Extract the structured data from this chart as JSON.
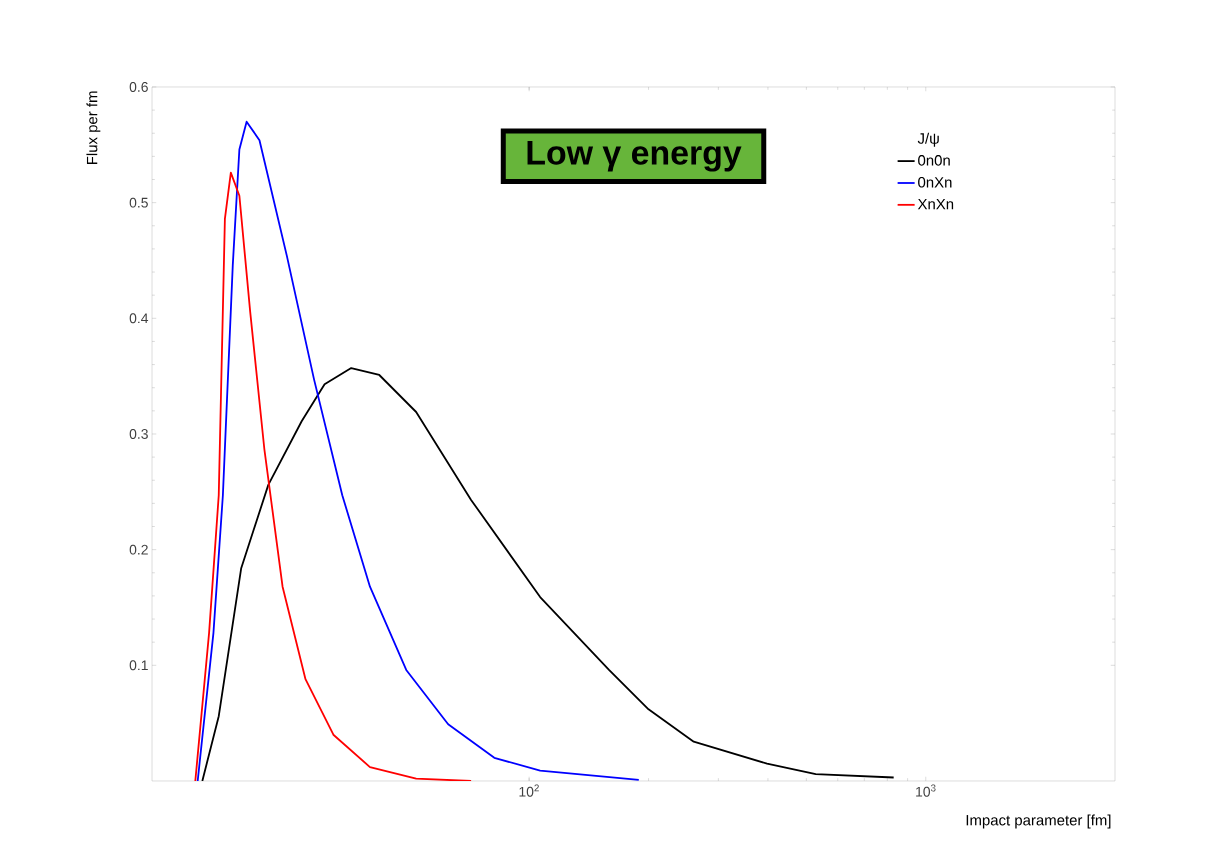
{
  "chart_data": {
    "type": "line",
    "xlabel": "Impact parameter [fm]",
    "ylabel": "Flux per fm",
    "legend_title": "J/ψ",
    "annotations": [
      "Low γ energy"
    ],
    "log": "x",
    "xlim": [
      11.2,
      3000
    ],
    "ylim": [
      0,
      0.6
    ],
    "xticks": [
      {
        "value": 100,
        "label": "10$^{2}$"
      },
      {
        "value": 1000,
        "label": "10$^{3}$"
      }
    ],
    "yticks": [
      0.1,
      0.2,
      0.3,
      0.4,
      0.5,
      0.6
    ],
    "grid": false,
    "legend": "top right",
    "marker": "none",
    "line_style": "solid",
    "series": [
      {
        "name": "0n0n",
        "color": "#000000",
        "x": [
          15.0,
          16.5,
          18.8,
          22.0,
          26.7,
          30.5,
          35.6,
          41.9,
          51.9,
          71.4,
          106.6,
          159,
          200,
          260,
          398,
          528,
          830
        ],
        "values": [
          0,
          0.056,
          0.184,
          0.256,
          0.311,
          0.343,
          0.357,
          0.351,
          0.319,
          0.243,
          0.159,
          0.096,
          0.062,
          0.034,
          0.015,
          0.006,
          0.003
        ]
      },
      {
        "name": "0nXn",
        "color": "#0000ff",
        "x": [
          14.6,
          16.0,
          16.9,
          17.9,
          18.6,
          19.4,
          20.9,
          24.5,
          28.7,
          33.8,
          39.7,
          49.0,
          62.5,
          81.7,
          106.6,
          189
        ],
        "values": [
          0,
          0.128,
          0.247,
          0.446,
          0.546,
          0.57,
          0.554,
          0.454,
          0.347,
          0.247,
          0.168,
          0.096,
          0.049,
          0.02,
          0.009,
          0.001
        ]
      },
      {
        "name": "XnXn",
        "color": "#ff0000",
        "x": [
          14.4,
          15.6,
          16.5,
          17.1,
          17.7,
          18.6,
          19.8,
          21.5,
          23.9,
          27.3,
          32.1,
          39.7,
          51.9,
          71.4
        ],
        "values": [
          0,
          0.128,
          0.247,
          0.486,
          0.526,
          0.506,
          0.406,
          0.287,
          0.168,
          0.088,
          0.04,
          0.012,
          0.002,
          0
        ]
      }
    ]
  }
}
